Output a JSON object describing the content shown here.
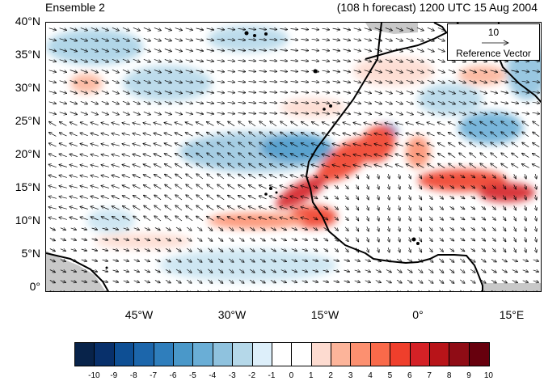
{
  "header": {
    "left": "Ensemble 2",
    "right": "(108 h forecast) 1200 UTC 15 Aug 2004"
  },
  "reference": {
    "value": "10",
    "label": "Reference Vector"
  },
  "axes": {
    "y": [
      "40°N",
      "35°N",
      "30°N",
      "25°N",
      "20°N",
      "15°N",
      "10°N",
      "5°N",
      "0°"
    ],
    "x": [
      "45°W",
      "30°W",
      "15°W",
      "0°",
      "15°E"
    ]
  },
  "colorbar": {
    "labels": [
      "-10",
      "-9",
      "-8",
      "-7",
      "-6",
      "-5",
      "-4",
      "-3",
      "-2",
      "-1",
      "0",
      "1",
      "2",
      "3",
      "4",
      "5",
      "6",
      "7",
      "8",
      "9",
      "10"
    ],
    "colors": [
      "#08234a",
      "#08306b",
      "#0e4f94",
      "#1c66ab",
      "#2f7ebc",
      "#4a98c9",
      "#6aaed6",
      "#8fc2de",
      "#b5d8e9",
      "#ddeffa",
      "#ffffff",
      "#ffffff",
      "#fddbd0",
      "#fcb49a",
      "#fc9070",
      "#f96a4a",
      "#ef3f2c",
      "#d42126",
      "#b81419",
      "#8f0c15",
      "#67000d"
    ]
  }
}
